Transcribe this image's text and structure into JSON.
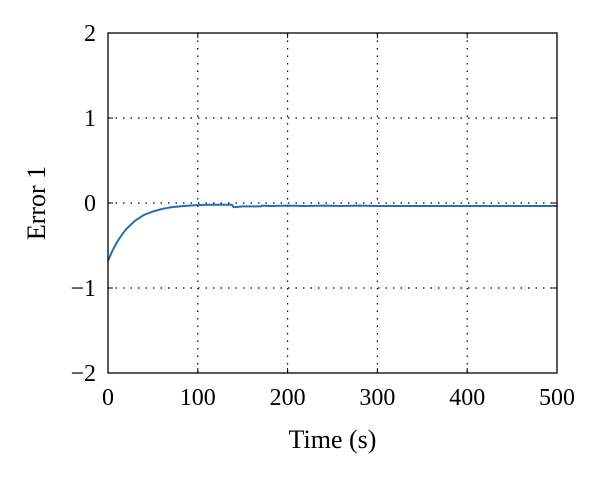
{
  "chart_data": {
    "type": "line",
    "title": "",
    "xlabel": "Time (s)",
    "ylabel": "Error 1",
    "xlim": [
      0,
      500
    ],
    "ylim": [
      -2,
      2
    ],
    "xticks": [
      0,
      100,
      200,
      300,
      400,
      500
    ],
    "yticks": [
      -2,
      -1,
      0,
      1,
      2
    ],
    "xtick_labels": [
      "0",
      "100",
      "200",
      "300",
      "400",
      "500"
    ],
    "ytick_labels": [
      "−2",
      "−1",
      "0",
      "1",
      "2"
    ],
    "grid": true,
    "grid_style": "dotted",
    "series": [
      {
        "color": "#2b6cb0",
        "x": [
          0,
          5,
          10,
          15,
          20,
          25,
          30,
          40,
          50,
          60,
          70,
          80,
          90,
          100,
          110,
          120,
          130,
          138,
          140,
          150,
          160,
          170,
          172,
          180,
          200,
          220,
          240,
          260,
          280,
          300,
          320,
          340,
          360,
          380,
          400,
          420,
          440,
          460,
          480,
          500
        ],
        "y": [
          -0.68,
          -0.56,
          -0.46,
          -0.38,
          -0.31,
          -0.26,
          -0.21,
          -0.14,
          -0.1,
          -0.07,
          -0.05,
          -0.04,
          -0.03,
          -0.025,
          -0.02,
          -0.02,
          -0.02,
          -0.02,
          -0.05,
          -0.04,
          -0.04,
          -0.04,
          -0.03,
          -0.035,
          -0.03,
          -0.035,
          -0.03,
          -0.035,
          -0.03,
          -0.035,
          -0.035,
          -0.035,
          -0.035,
          -0.035,
          -0.035,
          -0.035,
          -0.035,
          -0.035,
          -0.035,
          -0.035
        ]
      }
    ]
  }
}
